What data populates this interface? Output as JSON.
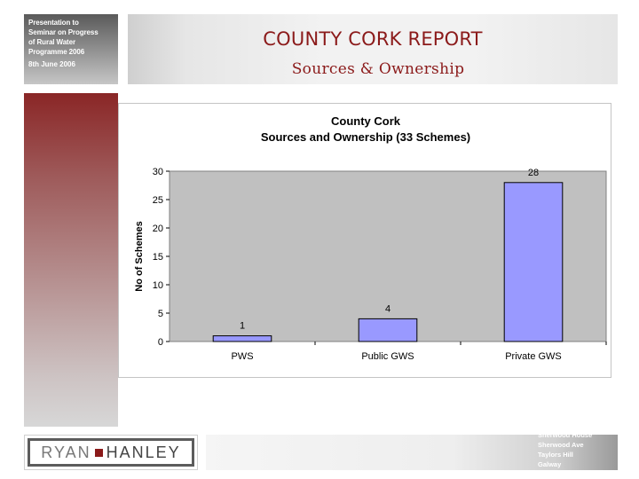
{
  "sidebar": {
    "presentation_lines": [
      "Presentation to",
      "Seminar on Progress",
      "of Rural Water",
      "Programme 2006"
    ],
    "date": "8th June 2006"
  },
  "header": {
    "title": "COUNTY CORK REPORT",
    "subtitle": "Sources & Ownership"
  },
  "footer": {
    "logo_left": "RYAN",
    "logo_right": "HANLEY",
    "address_lines": [
      "Sherwood House",
      "Sherwood Ave",
      "Taylors Hill",
      "Galway"
    ]
  },
  "colors": {
    "accent": "#8b1a1a",
    "bar_fill": "#9999ff",
    "plot_background": "#c0c0c0"
  },
  "chart_data": {
    "type": "bar",
    "title": "County Cork",
    "subtitle": "Sources and Ownership (33 Schemes)",
    "xlabel": "",
    "ylabel": "No of Schemes",
    "categories": [
      "PWS",
      "Public GWS",
      "Private GWS"
    ],
    "values": [
      1,
      4,
      28
    ],
    "data_labels": [
      "1",
      "4",
      "28"
    ],
    "ylim": [
      0,
      30
    ],
    "yticks": [
      0,
      5,
      10,
      15,
      20,
      25,
      30
    ],
    "grid": false,
    "legend": "none"
  }
}
